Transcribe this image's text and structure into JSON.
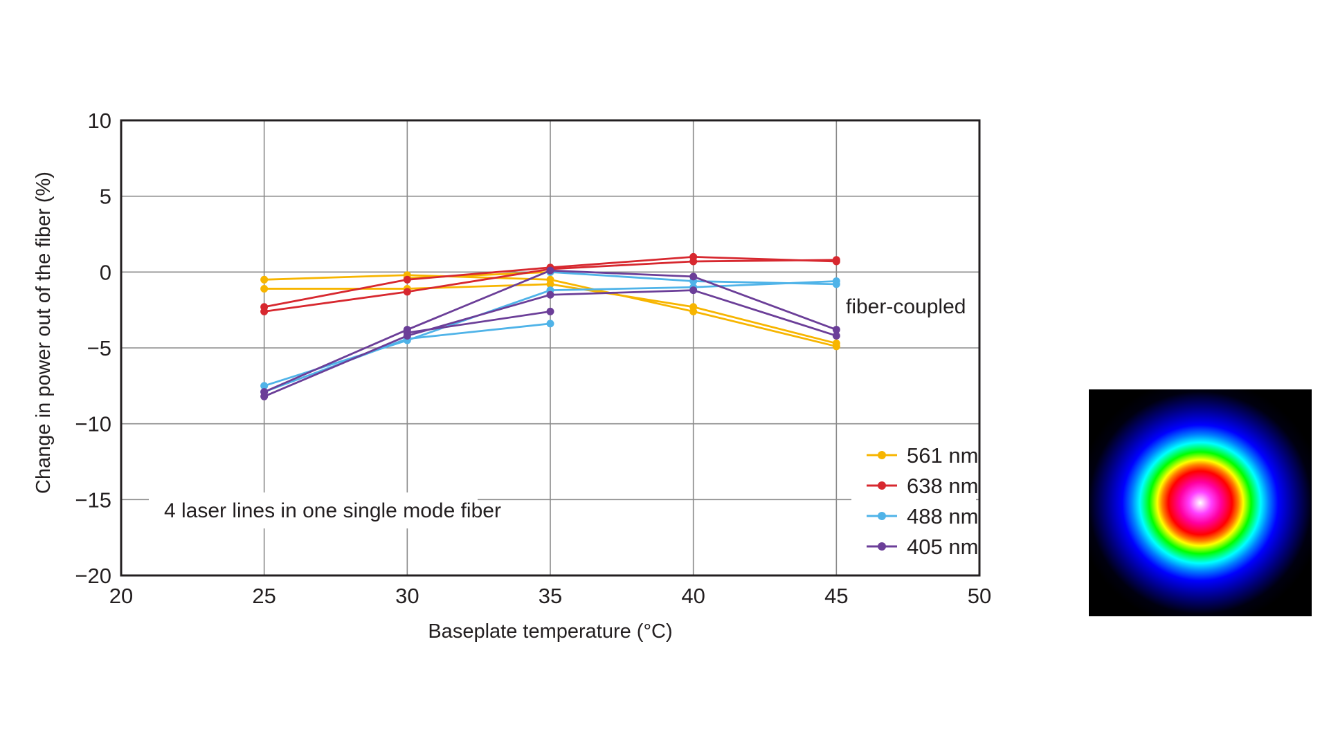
{
  "chart_data": {
    "type": "line",
    "xlabel": "Baseplate temperature (°C)",
    "ylabel": "Change in power out of the fiber (%)",
    "xlim": [
      20,
      50
    ],
    "ylim": [
      -20,
      10
    ],
    "x_ticks": [
      "20",
      "25",
      "30",
      "35",
      "40",
      "45",
      "50"
    ],
    "y_ticks": [
      "10",
      "5",
      "0",
      "−5",
      "−10",
      "−15",
      "−20"
    ],
    "grid": true,
    "legend_position": "bottom-right",
    "annotations": [
      "fiber-coupled",
      "4 laser lines in one single mode fiber"
    ],
    "series": [
      {
        "name": "561 nm",
        "color": "#f7b500",
        "x": [
          25,
          30,
          35,
          40,
          45
        ],
        "y": [
          -0.5,
          -0.2,
          -0.5,
          -2.6,
          -4.9
        ]
      },
      {
        "name": "561 nm",
        "color": "#f7b500",
        "x": [
          25,
          30,
          35,
          40,
          45
        ],
        "y": [
          -1.1,
          -1.1,
          -0.8,
          -2.3,
          -4.7
        ],
        "legend": false
      },
      {
        "name": "561 nm",
        "color": "#f7b500",
        "x": [
          30,
          35
        ],
        "y": [
          -0.4,
          0.0
        ],
        "legend": false
      },
      {
        "name": "638 nm",
        "color": "#d7282f",
        "x": [
          25,
          30,
          35,
          40,
          45
        ],
        "y": [
          -2.3,
          -0.5,
          0.3,
          1.0,
          0.7
        ],
        "legend": false
      },
      {
        "name": "638 nm",
        "color": "#d7282f",
        "x": [
          25,
          30,
          35,
          40,
          45
        ],
        "y": [
          -2.6,
          -1.3,
          0.2,
          0.7,
          0.8
        ]
      },
      {
        "name": "488 nm",
        "color": "#4fb3e8",
        "x": [
          25,
          30,
          35,
          40,
          45
        ],
        "y": [
          -7.5,
          -4.5,
          -1.2,
          -1.0,
          -0.6
        ]
      },
      {
        "name": "488 nm",
        "color": "#4fb3e8",
        "x": [
          25,
          30,
          35
        ],
        "y": [
          -7.9,
          -4.4,
          -3.4
        ],
        "legend": false
      },
      {
        "name": "488 nm",
        "color": "#4fb3e8",
        "x": [
          35,
          40,
          45
        ],
        "y": [
          0.0,
          -0.6,
          -0.8
        ],
        "legend": false
      },
      {
        "name": "405 nm",
        "color": "#6b3e98",
        "x": [
          25,
          30,
          35,
          40,
          45
        ],
        "y": [
          -8.2,
          -4.2,
          -1.5,
          -1.2,
          -4.2
        ]
      },
      {
        "name": "405 nm",
        "color": "#6b3e98",
        "x": [
          25,
          30,
          35,
          40,
          45
        ],
        "y": [
          -7.9,
          -3.8,
          0.1,
          -0.3,
          -3.8
        ],
        "legend": false
      },
      {
        "name": "405 nm",
        "color": "#6b3e98",
        "x": [
          30,
          35
        ],
        "y": [
          -4.0,
          -2.6
        ],
        "legend": false
      }
    ],
    "legend": [
      {
        "label": "561 nm",
        "color": "#f7b500"
      },
      {
        "label": "638 nm",
        "color": "#d7282f"
      },
      {
        "label": "488 nm",
        "color": "#4fb3e8"
      },
      {
        "label": "405 nm",
        "color": "#6b3e98"
      }
    ]
  }
}
